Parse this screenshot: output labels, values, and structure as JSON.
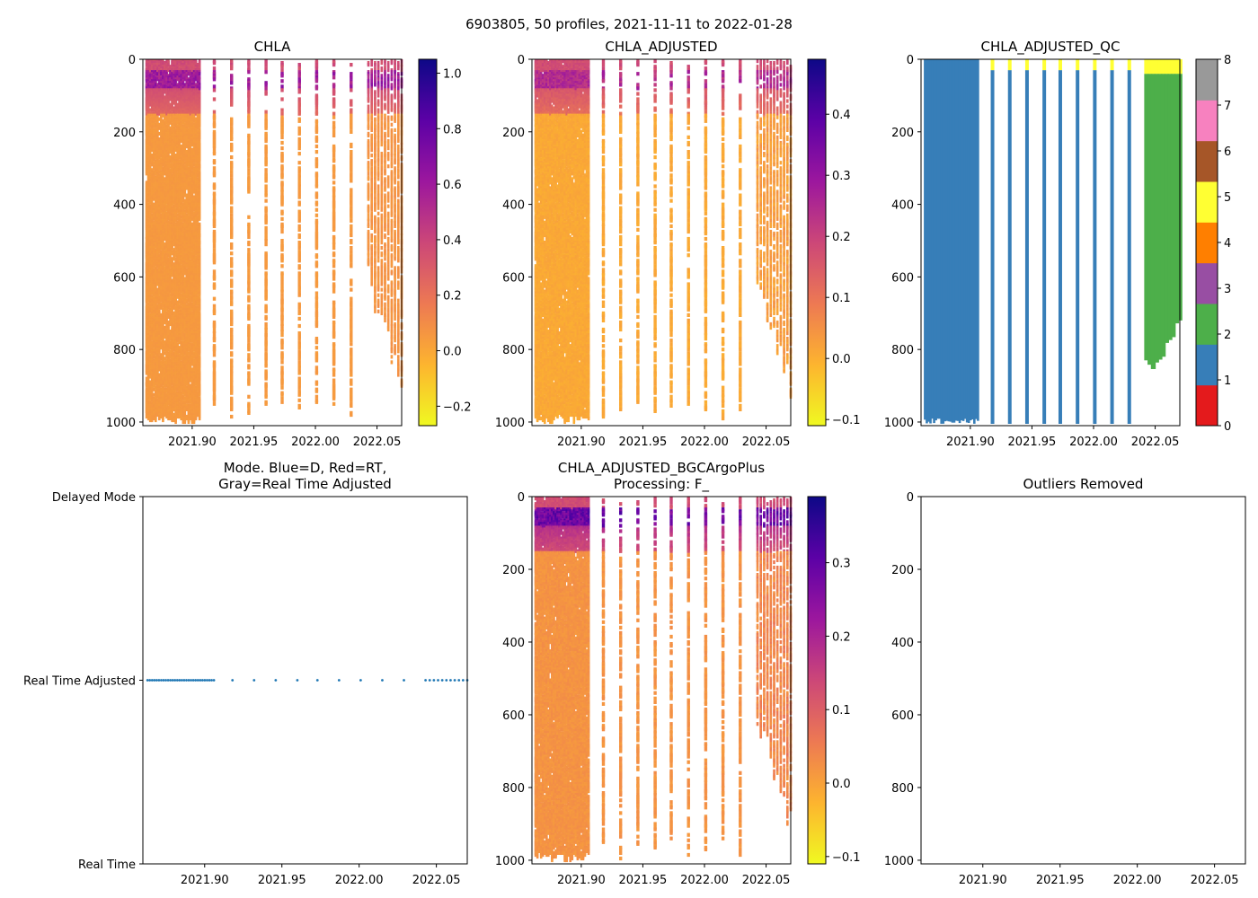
{
  "figure": {
    "suptitle": "6903805, 50 profiles, 2021-11-11 to 2022-01-28"
  },
  "colors": {
    "plasma_r": [
      "#f0f921",
      "#fdb42f",
      "#ed7953",
      "#cc4778",
      "#9c179e",
      "#5c01a6",
      "#0d0887"
    ],
    "qc": [
      "#e41a1c",
      "#377eb8",
      "#4daf4a",
      "#984ea3",
      "#ff7f00",
      "#ffff33",
      "#a65628",
      "#f781bf",
      "#999999"
    ],
    "mode_dot": "#1f77b4"
  },
  "profile_dates": {
    "early_start": 2021.863,
    "early_end": 2021.906,
    "early_count": 30,
    "sparse": [
      2021.918,
      2021.932,
      2021.946,
      2021.96,
      2021.973,
      2021.987,
      2022.001,
      2022.015,
      2022.029
    ],
    "late_start": 2022.043,
    "late_end": 2022.07,
    "late_count": 11
  },
  "chart_data": [
    {
      "id": "chla",
      "type": "heatmap",
      "title": "CHLA",
      "xlim": [
        2021.86,
        2022.07
      ],
      "ylim": [
        1010,
        0
      ],
      "xticks": [
        2021.9,
        2021.95,
        2022.0,
        2022.05
      ],
      "xtick_labels": [
        "2021.90",
        "2021.95",
        "2022.00",
        "2022.05"
      ],
      "yticks": [
        0,
        200,
        400,
        600,
        800,
        1000
      ],
      "ytick_labels": [
        "0",
        "200",
        "400",
        "600",
        "800",
        "1000"
      ],
      "colorbar": {
        "vmin": -0.27,
        "vmax": 1.05,
        "ticks": [
          -0.2,
          0.0,
          0.2,
          0.4,
          0.6,
          0.8,
          1.0
        ],
        "tick_labels": [
          "−0.2",
          "0.0",
          "0.2",
          "0.4",
          "0.6",
          "0.8",
          "1.0"
        ]
      },
      "surface_max": 0.62,
      "deep_value": 0.05
    },
    {
      "id": "chla_adj",
      "type": "heatmap",
      "title": "CHLA_ADJUSTED",
      "xlim": [
        2021.86,
        2022.07
      ],
      "ylim": [
        1010,
        0
      ],
      "xticks": [
        2021.9,
        2021.95,
        2022.0,
        2022.05
      ],
      "xtick_labels": [
        "2021.90",
        "2021.95",
        "2022.00",
        "2022.05"
      ],
      "yticks": [
        0,
        200,
        400,
        600,
        800,
        1000
      ],
      "ytick_labels": [
        "0",
        "200",
        "400",
        "600",
        "800",
        "1000"
      ],
      "colorbar": {
        "vmin": -0.11,
        "vmax": 0.49,
        "ticks": [
          -0.1,
          0.0,
          0.1,
          0.2,
          0.3,
          0.4
        ],
        "tick_labels": [
          "−0.1",
          "0.0",
          "0.1",
          "0.2",
          "0.3",
          "0.4"
        ]
      },
      "surface_max": 0.26,
      "deep_value": 0.01
    },
    {
      "id": "qc",
      "type": "heatmap",
      "title": "CHLA_ADJUSTED_QC",
      "xlim": [
        2021.86,
        2022.07
      ],
      "ylim": [
        1010,
        0
      ],
      "xticks": [
        2021.9,
        2021.95,
        2022.0,
        2022.05
      ],
      "xtick_labels": [
        "2021.90",
        "2021.95",
        "2022.00",
        "2022.05"
      ],
      "yticks": [
        0,
        200,
        400,
        600,
        800,
        1000
      ],
      "ytick_labels": [
        "0",
        "200",
        "400",
        "600",
        "800",
        "1000"
      ],
      "colorbar": {
        "vmin": 0,
        "vmax": 8,
        "ticks": [
          0,
          1,
          2,
          3,
          4,
          5,
          6,
          7,
          8
        ],
        "tick_labels": [
          "0",
          "1",
          "2",
          "3",
          "4",
          "5",
          "6",
          "7",
          "8"
        ]
      },
      "qc_flag_early": 1,
      "qc_flag_late": 2,
      "qc_flag_surface": 5
    },
    {
      "id": "mode",
      "type": "scatter",
      "title": "Mode. Blue=D, Red=RT,",
      "title2": "Gray=Real Time Adjusted",
      "xlim": [
        2021.86,
        2022.07
      ],
      "ylim": [
        0,
        2
      ],
      "xticks": [
        2021.9,
        2021.95,
        2022.0,
        2022.05
      ],
      "xtick_labels": [
        "2021.90",
        "2021.95",
        "2022.00",
        "2022.05"
      ],
      "yticks": [
        2,
        1,
        0
      ],
      "ytick_labels": [
        "Delayed Mode",
        "Real Time Adjusted",
        "Real Time"
      ],
      "mode_value": 1
    },
    {
      "id": "bgc",
      "type": "heatmap",
      "title": "CHLA_ADJUSTED_BGCArgoPlus",
      "title2": "Processing: F_",
      "xlim": [
        2021.86,
        2022.07
      ],
      "ylim": [
        1010,
        0
      ],
      "xticks": [
        2021.9,
        2021.95,
        2022.0,
        2022.05
      ],
      "xtick_labels": [
        "2021.90",
        "2021.95",
        "2022.00",
        "2022.05"
      ],
      "yticks": [
        0,
        200,
        400,
        600,
        800,
        1000
      ],
      "ytick_labels": [
        "0",
        "200",
        "400",
        "600",
        "800",
        "1000"
      ],
      "colorbar": {
        "vmin": -0.11,
        "vmax": 0.39,
        "ticks": [
          -0.1,
          0.0,
          0.1,
          0.2,
          0.3
        ],
        "tick_labels": [
          "−0.1",
          "0.0",
          "0.1",
          "0.2",
          "0.3"
        ]
      },
      "surface_max": 0.3,
      "deep_value": 0.02
    },
    {
      "id": "outliers",
      "type": "scatter",
      "title": "Outliers Removed",
      "xlim": [
        2021.86,
        2022.07
      ],
      "ylim": [
        1010,
        0
      ],
      "xticks": [
        2021.9,
        2021.95,
        2022.0,
        2022.05
      ],
      "xtick_labels": [
        "2021.90",
        "2021.95",
        "2022.00",
        "2022.05"
      ],
      "yticks": [
        0,
        200,
        400,
        600,
        800,
        1000
      ],
      "ytick_labels": [
        "0",
        "200",
        "400",
        "600",
        "800",
        "1000"
      ]
    }
  ]
}
